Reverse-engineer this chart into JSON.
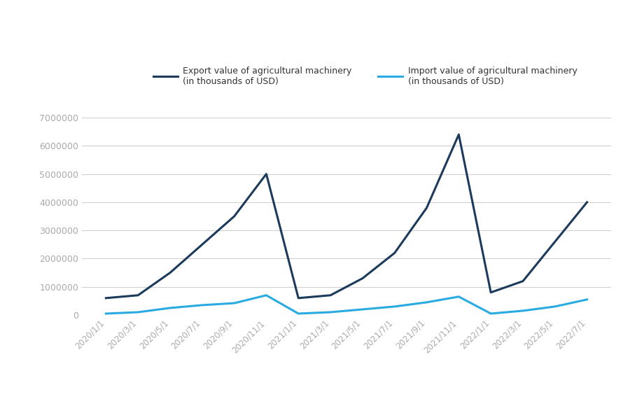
{
  "labels": [
    "2020/1/1",
    "2020/3/1",
    "2020/5/1",
    "2020/7/1",
    "2020/9/1",
    "2020/11/1",
    "2021/1/1",
    "2021/3/1",
    "2021/5/1",
    "2021/7/1",
    "2021/9/1",
    "2021/11/1",
    "2022/1/1",
    "2022/3/1",
    "2022/5/1",
    "2022/7/1"
  ],
  "export_values": [
    600000,
    700000,
    1500000,
    2500000,
    3500000,
    5000000,
    600000,
    700000,
    1300000,
    2200000,
    3800000,
    6400000,
    800000,
    1200000,
    2600000,
    4000000
  ],
  "import_values": [
    50000,
    100000,
    250000,
    350000,
    420000,
    700000,
    50000,
    100000,
    200000,
    300000,
    450000,
    650000,
    50000,
    150000,
    300000,
    550000
  ],
  "export_color": "#1b3a5c",
  "import_color": "#29abe2",
  "background_color": "#ffffff",
  "grid_color": "#d0d0d0",
  "tick_color": "#aaaaaa",
  "export_label": "Export value of agricultural machinery\n(in thousands of USD)",
  "import_label": "Import value of agricultural machinery\n(in thousands of USD)",
  "ylim": [
    0,
    7000000
  ],
  "yticks": [
    0,
    1000000,
    2000000,
    3000000,
    4000000,
    5000000,
    6000000,
    7000000
  ]
}
